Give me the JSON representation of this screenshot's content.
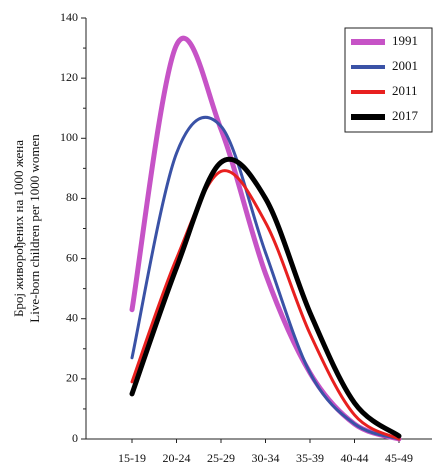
{
  "chart_data": {
    "type": "line",
    "y_label": [
      "Број живорођених на 1000 жена",
      "Live-born children per 1000 women"
    ],
    "categories": [
      "15-19",
      "20-24",
      "25-29",
      "30-34",
      "35-39",
      "40-44",
      "45-49"
    ],
    "series": [
      {
        "name": "1991",
        "color": "#c653c6",
        "width": 5,
        "values": [
          43,
          131,
          103,
          55,
          22,
          5,
          0
        ]
      },
      {
        "name": "2001",
        "color": "#3a52a6",
        "width": 3,
        "values": [
          27,
          95,
          104,
          62,
          22,
          5,
          0
        ]
      },
      {
        "name": "2011",
        "color": "#e8201f",
        "width": 3,
        "values": [
          19,
          60,
          89,
          72,
          35,
          8,
          0
        ]
      },
      {
        "name": "2017",
        "color": "#000000",
        "width": 5,
        "values": [
          15,
          57,
          92,
          80,
          42,
          12,
          1
        ]
      }
    ],
    "ylim": [
      0,
      140
    ],
    "yticks": [
      0,
      20,
      40,
      60,
      80,
      100,
      120,
      140
    ],
    "legend": "top-right",
    "smooth": true
  }
}
